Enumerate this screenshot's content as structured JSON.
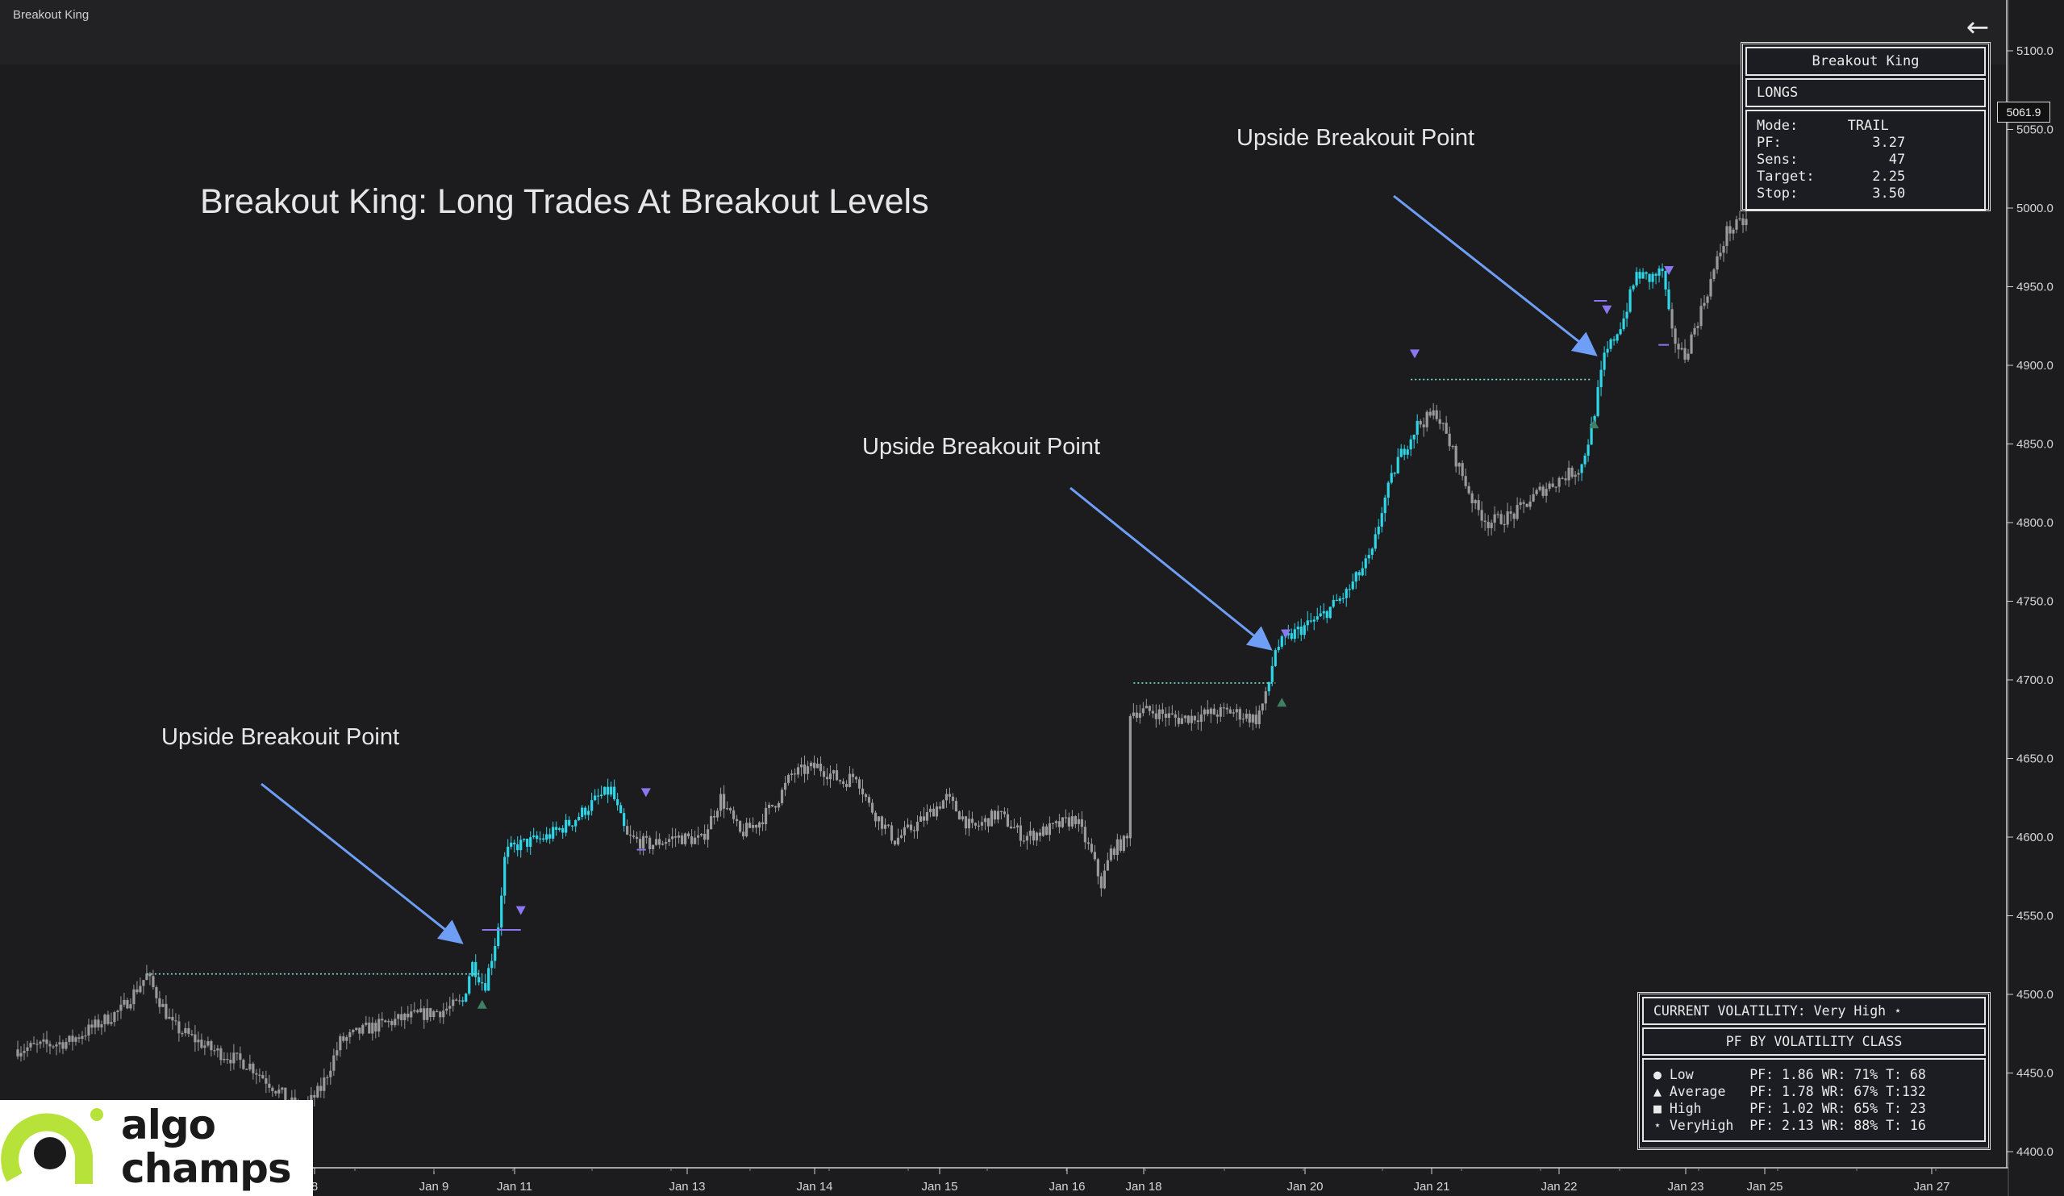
{
  "app": {
    "title": "Breakout King"
  },
  "annotations": {
    "headline": "Breakout King: Long Trades At Breakout Levels",
    "breakout_label": "Upside Breakouit Point"
  },
  "price_tag": "5061.9",
  "info_panel": {
    "title": "Breakout King",
    "side": "LONGS",
    "lines": [
      "Mode:      TRAIL",
      "PF:           3.27",
      "Sens:           47",
      "Target:       2.25",
      "Stop:         3.50"
    ]
  },
  "volatility_panel": {
    "current": "CURRENT VOLATILITY: Very High    ⋆",
    "header": "PF BY VOLATILITY CLASS",
    "rows": [
      "● Low       PF: 1.86 WR: 71% T: 68",
      "▲ Average   PF: 1.78 WR: 67% T:132",
      "■ High      PF: 1.02 WR: 65% T: 23",
      "⋆ VeryHigh  PF: 2.13 WR: 88% T: 16"
    ]
  },
  "logo": {
    "line1": "algo",
    "line2": "champs"
  },
  "icons": {
    "back": "arrow-left-icon"
  },
  "colors": {
    "background": "#1c1c1f",
    "candle_neutral": "#9a9a9a",
    "candle_long": "#2fd6e8",
    "breakout_level": "#7ee0d0",
    "arrow": "#6e9ef5",
    "signal_down": "#8b78f0",
    "signal_up": "#3f7f63"
  },
  "chart_data": {
    "type": "candlestick",
    "x_tick_labels": [
      "8",
      "Jan 9",
      "Jan 11",
      "Jan 13",
      "Jan 14",
      "Jan 15",
      "Jan 16",
      "Jan 18",
      "Jan 20",
      "Jan 21",
      "Jan 22",
      "Jan 23",
      "Jan 25",
      "Jan 27"
    ],
    "y_tick_labels": [
      "5100.0",
      "5050.0",
      "5000.0",
      "4950.0",
      "4900.0",
      "4850.0",
      "4800.0",
      "4750.0",
      "4700.0",
      "4650.0",
      "4600.0",
      "4550.0",
      "4500.0",
      "4450.0",
      "4400.0"
    ],
    "ylim": [
      4375,
      5115
    ],
    "path": [
      [
        0,
        4465
      ],
      [
        40,
        4470
      ],
      [
        80,
        4490
      ],
      [
        100,
        4512
      ],
      [
        120,
        4480
      ],
      [
        150,
        4465
      ],
      [
        180,
        4455
      ],
      [
        200,
        4440
      ],
      [
        220,
        4425
      ],
      [
        235,
        4440
      ],
      [
        250,
        4470
      ],
      [
        270,
        4478
      ],
      [
        300,
        4485
      ],
      [
        330,
        4490
      ],
      [
        345,
        4495
      ],
      [
        352,
        4520
      ],
      [
        362,
        4505
      ],
      [
        372,
        4540
      ],
      [
        378,
        4590
      ],
      [
        388,
        4595
      ],
      [
        410,
        4600
      ],
      [
        430,
        4610
      ],
      [
        450,
        4625
      ],
      [
        460,
        4630
      ],
      [
        472,
        4600
      ],
      [
        490,
        4595
      ],
      [
        510,
        4600
      ],
      [
        530,
        4598
      ],
      [
        545,
        4625
      ],
      [
        560,
        4602
      ],
      [
        575,
        4610
      ],
      [
        590,
        4625
      ],
      [
        600,
        4640
      ],
      [
        620,
        4645
      ],
      [
        640,
        4635
      ],
      [
        650,
        4640
      ],
      [
        660,
        4620
      ],
      [
        680,
        4598
      ],
      [
        700,
        4610
      ],
      [
        720,
        4625
      ],
      [
        740,
        4605
      ],
      [
        760,
        4615
      ],
      [
        780,
        4600
      ],
      [
        800,
        4605
      ],
      [
        820,
        4612
      ],
      [
        832,
        4590
      ],
      [
        840,
        4570
      ],
      [
        848,
        4592
      ],
      [
        860,
        4598
      ],
      [
        862,
        4680
      ],
      [
        880,
        4680
      ],
      [
        900,
        4675
      ],
      [
        920,
        4678
      ],
      [
        940,
        4680
      ],
      [
        960,
        4675
      ],
      [
        968,
        4690
      ],
      [
        975,
        4720
      ],
      [
        990,
        4730
      ],
      [
        1010,
        4740
      ],
      [
        1030,
        4755
      ],
      [
        1050,
        4780
      ],
      [
        1058,
        4810
      ],
      [
        1070,
        4840
      ],
      [
        1085,
        4862
      ],
      [
        1100,
        4870
      ],
      [
        1110,
        4850
      ],
      [
        1120,
        4830
      ],
      [
        1130,
        4810
      ],
      [
        1140,
        4800
      ],
      [
        1160,
        4805
      ],
      [
        1180,
        4820
      ],
      [
        1200,
        4830
      ],
      [
        1212,
        4835
      ],
      [
        1220,
        4860
      ],
      [
        1230,
        4905
      ],
      [
        1245,
        4930
      ],
      [
        1255,
        4958
      ],
      [
        1265,
        4955
      ],
      [
        1275,
        4960
      ],
      [
        1282,
        4920
      ],
      [
        1292,
        4905
      ],
      [
        1305,
        4935
      ],
      [
        1315,
        4960
      ],
      [
        1325,
        4985
      ],
      [
        1340,
        4992
      ]
    ],
    "long_segments": [
      [
        345,
        378
      ],
      [
        378,
        472
      ],
      [
        968,
        1085
      ],
      [
        1212,
        1282
      ]
    ],
    "breakout_levels": [
      {
        "from": 100,
        "to": 360,
        "price": 4513
      },
      {
        "from": 865,
        "to": 975,
        "price": 4698
      },
      {
        "from": 1080,
        "to": 1220,
        "price": 4891
      }
    ],
    "signals_down": [
      [
        390,
        4553
      ],
      [
        487,
        4628
      ],
      [
        983,
        4729
      ],
      [
        1083,
        4907
      ],
      [
        1232,
        4935
      ],
      [
        1280,
        4960
      ]
    ],
    "signals_up": [
      [
        360,
        4494
      ],
      [
        980,
        4686
      ],
      [
        1222,
        4863
      ]
    ]
  }
}
